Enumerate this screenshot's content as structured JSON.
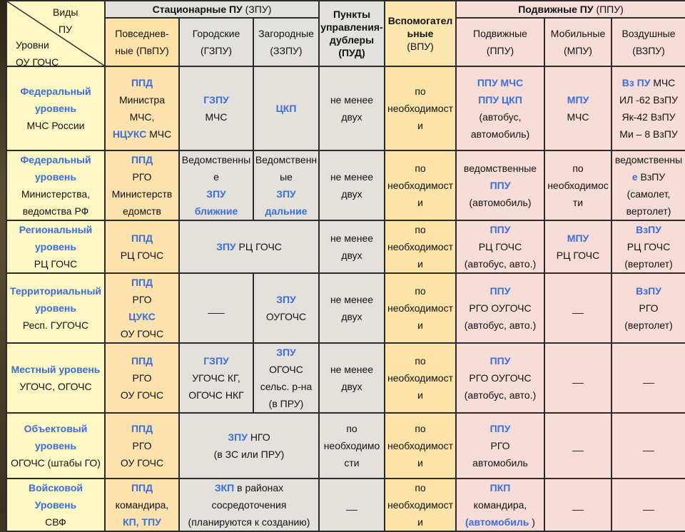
{
  "corner": {
    "top": "Виды",
    "top2": "ПУ",
    "bottom": "Уровни",
    "bottom2": "ОУ ГОЧС"
  },
  "headers": {
    "zpu_title": "Стационарные ПУ",
    "zpu_abbr": "(ЗПУ)",
    "pud": "Пункты\nуправления-\nдублеры\n(ПУД)",
    "vpu_title": "Вспомогател\nьные",
    "vpu_abbr": "(ВПУ)",
    "ppu_title": "Подвижные ПУ",
    "ppu_abbr": "(ППУ)",
    "sub": {
      "pvpu": "Повседнев-\nные (ПвПУ)",
      "gzpu": "Городские\n(ГЗПУ)",
      "zzpu": "Загородные\n(ЗЗПУ)",
      "ppu": "Подвижные\n(ППУ)",
      "mpu": "Мобильные\n(МПУ)",
      "vzpu": "Воздушные\n(ВЗПУ)"
    }
  },
  "rows": [
    {
      "level_blue": "Федеральный\nуровень",
      "level_text": "МЧС России",
      "pv": [
        [
          "b",
          "ППД"
        ],
        [
          "t",
          "Министра"
        ],
        [
          "t",
          "МЧС,"
        ],
        [
          "m",
          "НЦУКС",
          "МЧС"
        ]
      ],
      "gz": [
        [
          "b",
          "ГЗПУ"
        ],
        [
          "t",
          "МЧС"
        ]
      ],
      "zz": [
        [
          "b",
          "ЦКП"
        ]
      ],
      "pud": "не менее\nдвух",
      "vpu": "по\nнеобходимост\nи",
      "ppu": [
        [
          "b",
          "ППУ МЧС"
        ],
        [
          "b",
          "ППУ ЦКП"
        ],
        [
          "t",
          "(автобус,"
        ],
        [
          "t",
          "автомобиль)"
        ]
      ],
      "mpu": [
        [
          "b",
          "МПУ"
        ],
        [
          "t",
          "МЧС"
        ]
      ],
      "vz": [
        [
          "m",
          "Вз ПУ",
          "МЧС"
        ],
        [
          "t",
          "ИЛ -62 ВзПУ"
        ],
        [
          "t",
          "Як-42  ВзПУ"
        ],
        [
          "t",
          "Ми – 8 ВзПУ"
        ]
      ]
    },
    {
      "level_blue": "Федеральный\nуровень",
      "level_text": "Министерства,\nведомства РФ",
      "pv": [
        [
          "b",
          "ППД"
        ],
        [
          "t",
          "РГО"
        ],
        [
          "t",
          "Министерств"
        ],
        [
          "t",
          "едомств"
        ]
      ],
      "gz": [
        [
          "t",
          "Ведомственны"
        ],
        [
          "t",
          "е"
        ],
        [
          "b",
          "ЗПУ"
        ],
        [
          "b",
          "ближние"
        ]
      ],
      "zz": [
        [
          "t",
          "Ведомственн"
        ],
        [
          "t",
          "ые"
        ],
        [
          "b",
          "ЗПУ"
        ],
        [
          "b",
          "дальние"
        ]
      ],
      "pud": "не менее\nдвух",
      "vpu": "по\nнеобходимост\nи",
      "ppu": [
        [
          "t",
          "ведомственные"
        ],
        [
          "b",
          "ППУ"
        ],
        [
          "t",
          "(автомобиль)"
        ]
      ],
      "mpu": [
        [
          "t",
          "по"
        ],
        [
          "t",
          "необходимос"
        ],
        [
          "t",
          "ти"
        ]
      ],
      "vz": [
        [
          "t",
          "ведомственны"
        ],
        [
          "m",
          "е",
          "ВзПУ"
        ],
        [
          "t",
          "(самолет,"
        ],
        [
          "t",
          "вертолет)"
        ]
      ]
    },
    {
      "level_blue": "Региональный\nуровень",
      "level_text": "РЦ ГОЧС",
      "pv": [
        [
          "b",
          "ППД"
        ],
        [
          "t",
          "РЦ ГОЧС"
        ]
      ],
      "merged": [
        [
          "m2",
          "ЗПУ",
          "РЦ ГОЧС"
        ]
      ],
      "pud": "не менее\nдвух",
      "vpu": "по\nнеобходимост\nи",
      "ppu": [
        [
          "b",
          "ППУ"
        ],
        [
          "t",
          "РЦ ГОЧС"
        ],
        [
          "t",
          "(автобус, авто.)"
        ]
      ],
      "mpu": [
        [
          "b",
          "МПУ"
        ],
        [
          "t",
          "РЦ ГОЧС"
        ]
      ],
      "vz": [
        [
          "b",
          "ВзПУ"
        ],
        [
          "t",
          "РЦ ГОЧС"
        ],
        [
          "t",
          "(вертолет)"
        ]
      ]
    },
    {
      "level_blue": "Территориальный\nуровень",
      "level_text": "Респ. ГУГОЧС",
      "pv": [
        [
          "b",
          "ППД"
        ],
        [
          "t",
          "РГО"
        ],
        [
          "b",
          "ЦУКС"
        ],
        [
          "t",
          "ОУ ГОЧС"
        ]
      ],
      "gz": [
        [
          "t",
          "___"
        ]
      ],
      "zz": [
        [
          "b",
          "ЗПУ"
        ],
        [
          "t",
          "ОУГОЧС"
        ]
      ],
      "pud": "не менее\nдвух",
      "vpu": "по\nнеобходимост\nи",
      "ppu": [
        [
          "b",
          "ППУ"
        ],
        [
          "t",
          "РГО ОУГОЧС"
        ],
        [
          "t",
          "(автобус, авто.)"
        ]
      ],
      "mpu": [
        [
          "t",
          "__"
        ]
      ],
      "vz": [
        [
          "b",
          "ВзПУ"
        ],
        [
          "t",
          "РГО"
        ],
        [
          "t",
          "(вертолет)"
        ]
      ]
    },
    {
      "level_blue": "Местный уровень",
      "level_text": "УГОЧС, ОГОЧС",
      "pv": [
        [
          "b",
          "ППД"
        ],
        [
          "t",
          "РГО"
        ],
        [
          "t",
          "ОУ ГОЧС"
        ]
      ],
      "gz": [
        [
          "b",
          "ГЗПУ"
        ],
        [
          "t",
          "УГОЧС КГ,"
        ],
        [
          "t",
          "ОГОЧС НКГ"
        ]
      ],
      "zz": [
        [
          "b",
          "ЗПУ"
        ],
        [
          "t",
          "ОГОЧС"
        ],
        [
          "t",
          "сельс. р-на"
        ],
        [
          "t",
          "(в ПРУ)"
        ]
      ],
      "pud": "не менее\nдвух",
      "vpu": "по\nнеобходимост\nи",
      "ppu": [
        [
          "b",
          "ППУ"
        ],
        [
          "t",
          "РГО ОУГОЧС"
        ],
        [
          "t",
          "(автобус, авто.)"
        ]
      ],
      "mpu": [
        [
          "t",
          "__"
        ]
      ],
      "vz": [
        [
          "t",
          "__"
        ]
      ]
    },
    {
      "level_blue": "Объектовый\nуровень",
      "level_text": "ОГОЧС (штабы ГО)",
      "pv": [
        [
          "b",
          "ППД"
        ],
        [
          "t",
          "РГО"
        ],
        [
          "t",
          "ОУ ГОЧС"
        ]
      ],
      "merged": [
        [
          "m2",
          "ЗПУ",
          "НГО"
        ],
        [
          "t",
          "(в ЗС или ПРУ)"
        ]
      ],
      "pud": "по\nнеобходимо\nсти",
      "vpu": "по\nнеобходимост\nи",
      "ppu": [
        [
          "b",
          "ППУ"
        ],
        [
          "t",
          "РГО"
        ],
        [
          "t",
          "автомобиль"
        ]
      ],
      "mpu": [
        [
          "t",
          "__"
        ]
      ],
      "vz": [
        [
          "t",
          "__"
        ]
      ]
    },
    {
      "level_blue": "Войсковой\nУровень",
      "level_text": "СВФ",
      "pv": [
        [
          "b",
          "ППД"
        ],
        [
          "t",
          "командира,"
        ],
        [
          "b",
          "КП, ТПУ"
        ]
      ],
      "merged": [
        [
          "m2",
          "ЗКП",
          "в  районах"
        ],
        [
          "t",
          "сосредоточения"
        ],
        [
          "t",
          "(планируются к созданию)"
        ]
      ],
      "pud": "__",
      "vpu": "по\nнеобходимост\nи",
      "ppu": [
        [
          "b",
          "ПКП"
        ],
        [
          "t",
          "командира,"
        ],
        [
          "m",
          "(автомобиль",
          "",
          ")"
        ]
      ],
      "mpu": [
        [
          "t",
          "__"
        ]
      ],
      "vz": [
        [
          "t",
          "__"
        ]
      ]
    }
  ]
}
